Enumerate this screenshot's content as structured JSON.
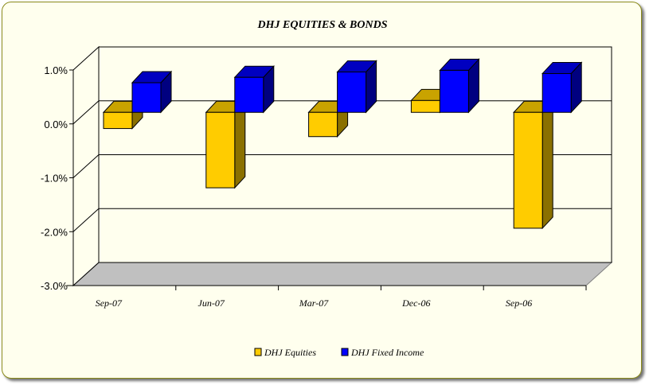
{
  "chart_data": {
    "type": "bar",
    "title": "DHJ EQUITIES & BONDS",
    "categories": [
      "Sep-07",
      "Jun-07",
      "Mar-07",
      "Dec-06",
      "Sep-06"
    ],
    "series": [
      {
        "name": "DHJ Equities",
        "values": [
          -0.3,
          -1.4,
          -0.45,
          0.22,
          -2.15
        ],
        "color": "#ffcc00",
        "side_color": "#8a7000",
        "top_color": "#c9a300"
      },
      {
        "name": "DHJ Fixed Income",
        "values": [
          0.55,
          0.65,
          0.75,
          0.78,
          0.72
        ],
        "color": "#0000ff",
        "side_color": "#000080",
        "top_color": "#0000c0"
      }
    ],
    "y_ticks": [
      "1.0%",
      "0.0%",
      "-1.0%",
      "-2.0%",
      "-3.0%"
    ],
    "ylim": [
      -3.0,
      1.0
    ],
    "grid": true,
    "legend_position": "bottom",
    "floor_color": "#c0c0c0",
    "frame_background": "#ffffee",
    "frame_border": "#8a8a1a"
  }
}
